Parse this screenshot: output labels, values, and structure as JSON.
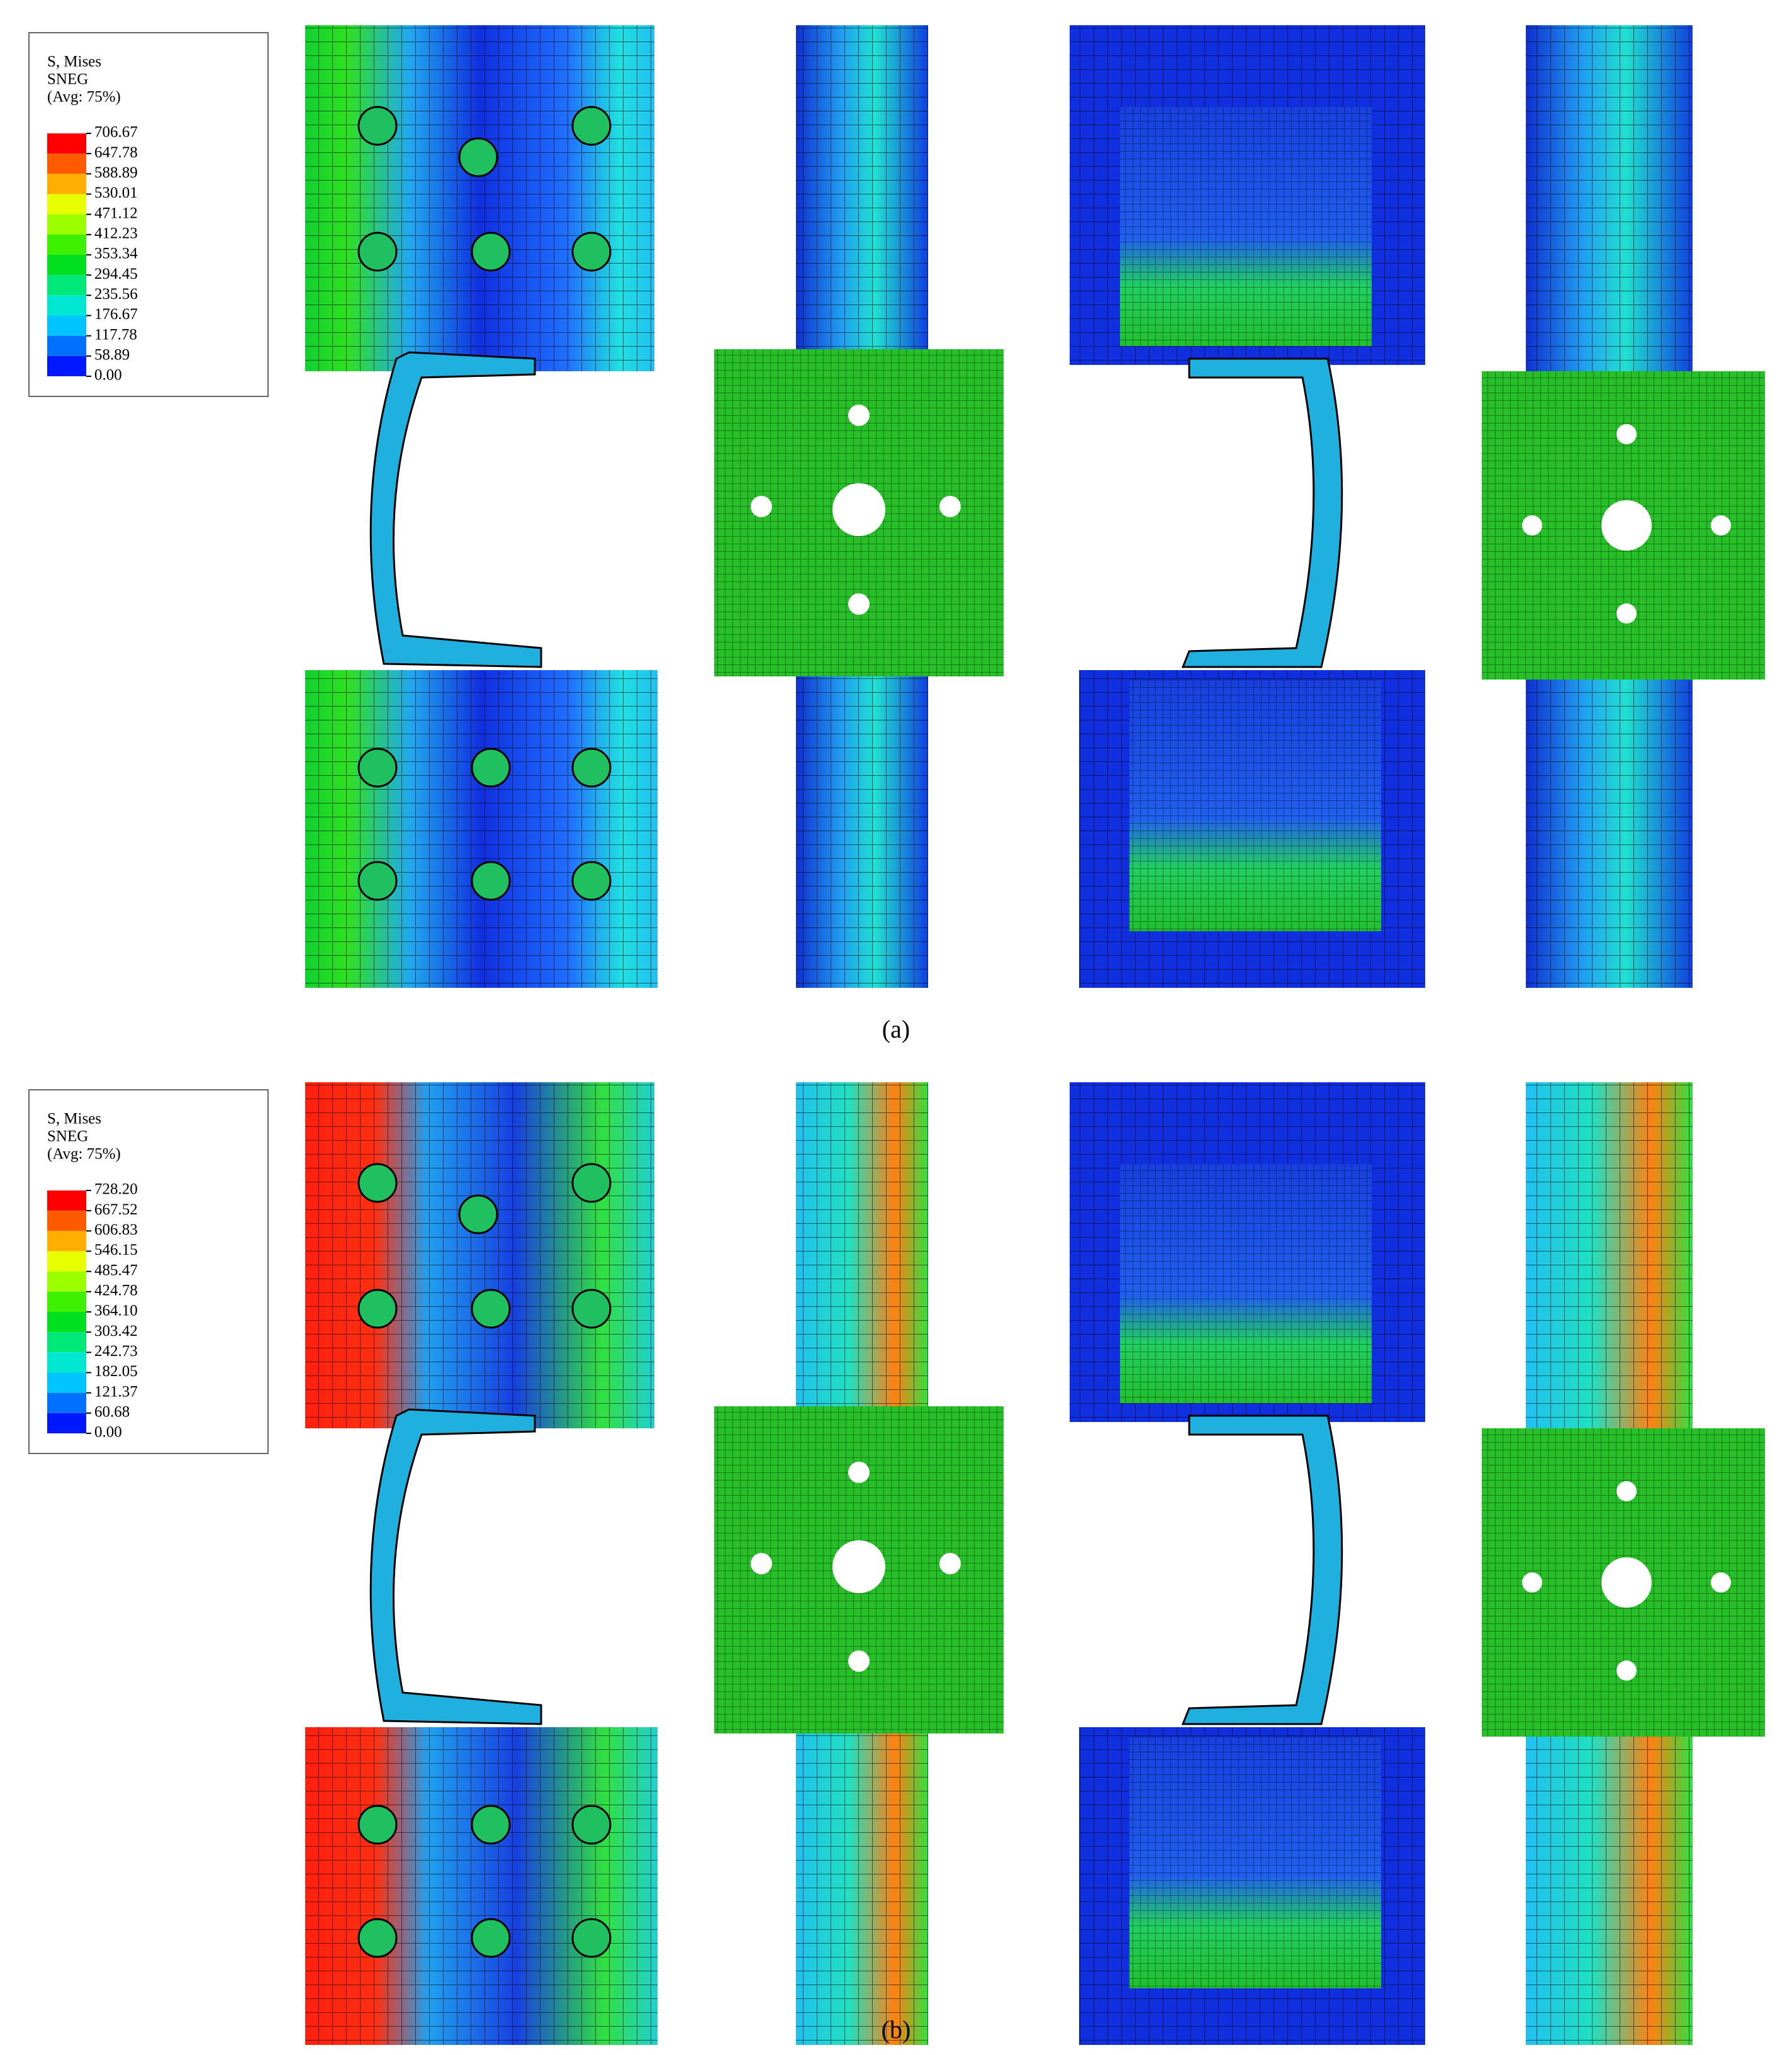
{
  "panels": [
    {
      "legend": {
        "title": [
          "S, Mises",
          "SNEG",
          "(Avg: 75%)"
        ],
        "values": [
          "706.67",
          "647.78",
          "588.89",
          "530.01",
          "471.12",
          "412.23",
          "353.34",
          "294.45",
          "235.56",
          "176.67",
          "117.78",
          "58.89",
          "0.00"
        ],
        "colors": [
          "#ff0000",
          "#ff5a00",
          "#ffae00",
          "#e8ff00",
          "#9cff00",
          "#3cf000",
          "#00e020",
          "#00e878",
          "#00e8d2",
          "#00c4ff",
          "#0070ff",
          "#0018ff"
        ]
      },
      "caption": "(a)"
    },
    {
      "legend": {
        "title": [
          "S, Mises",
          "SNEG",
          "(Avg: 75%)"
        ],
        "values": [
          "728.20",
          "667.52",
          "606.83",
          "546.15",
          "485.47",
          "424.78",
          "364.10",
          "303.42",
          "242.73",
          "182.05",
          "121.37",
          "60.68",
          "0.00"
        ],
        "colors": [
          "#ff0000",
          "#ff5a00",
          "#ffae00",
          "#e8ff00",
          "#9cff00",
          "#3cf000",
          "#00e020",
          "#00e878",
          "#00e8d2",
          "#00c4ff",
          "#0070ff",
          "#0018ff"
        ]
      },
      "caption": "(b)"
    }
  ]
}
